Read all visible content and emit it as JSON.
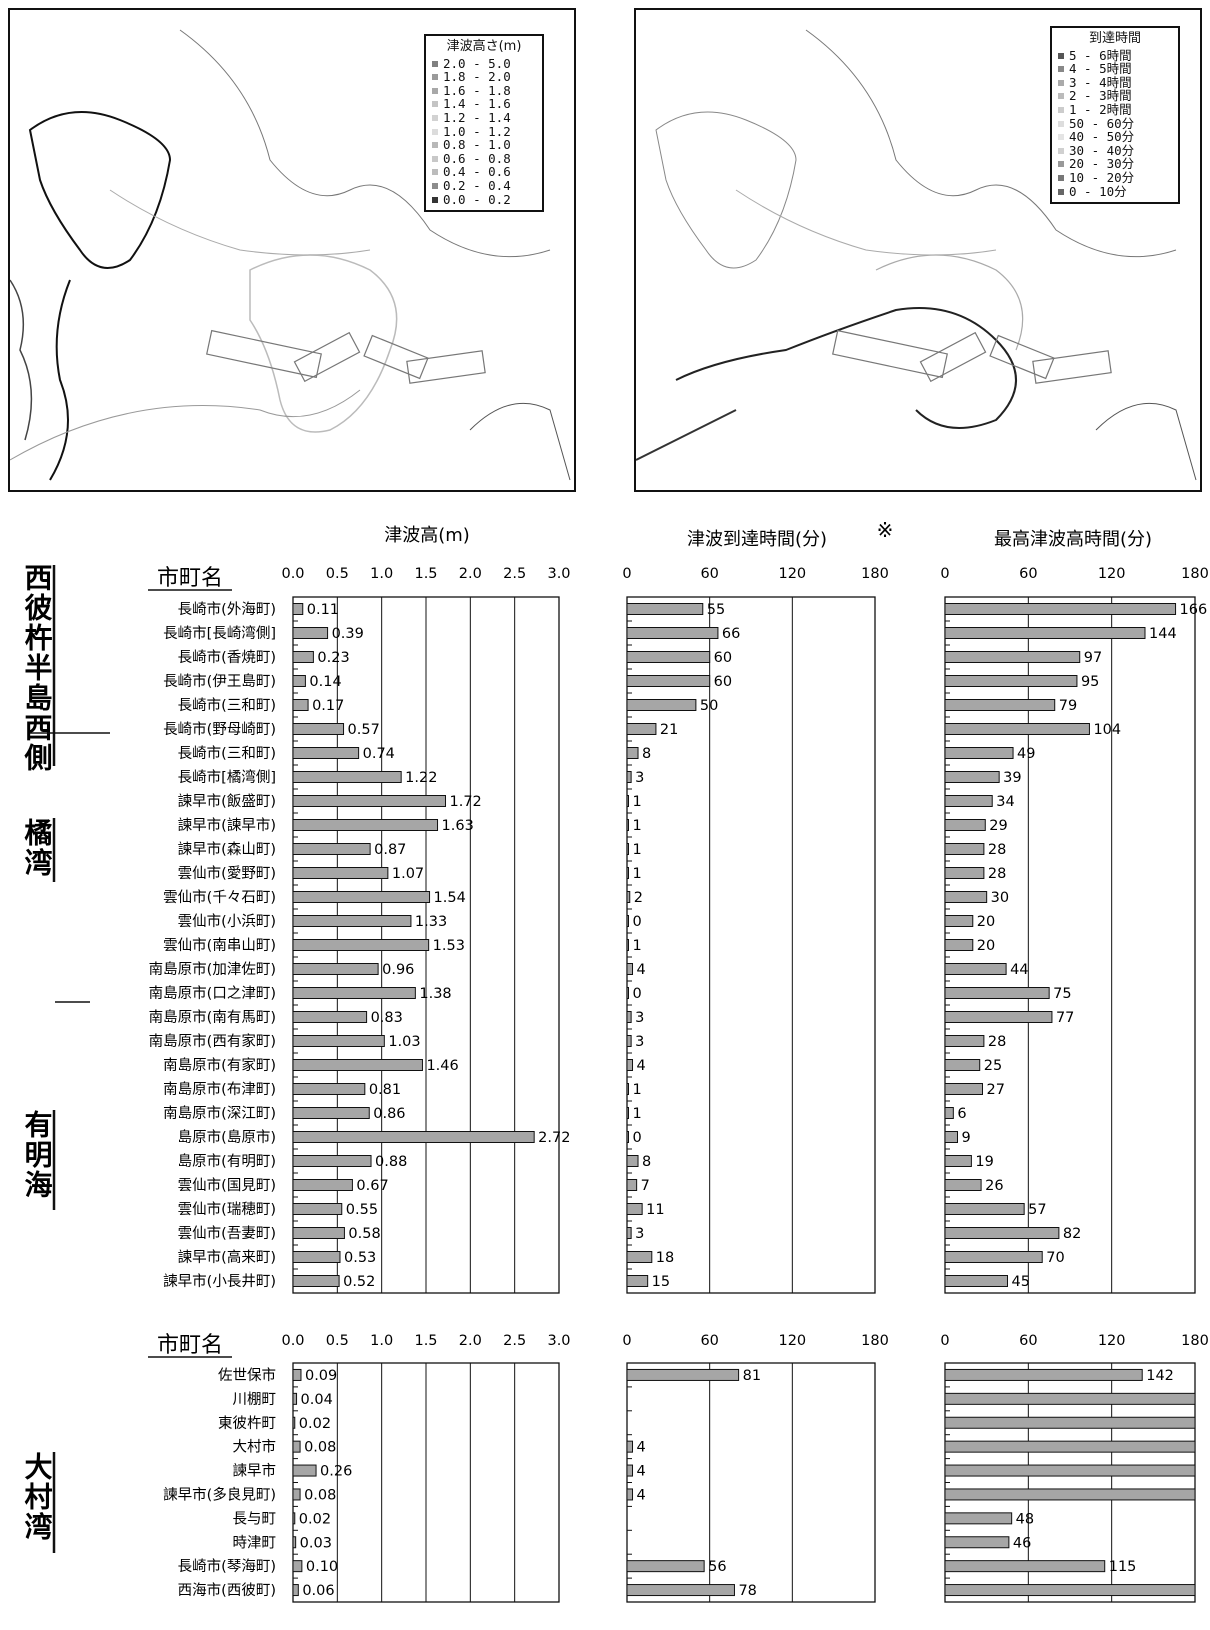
{
  "map_left": {
    "legend_title": "津波高さ(m)",
    "legend_items": [
      "2.0 - 5.0",
      "1.8 - 2.0",
      "1.6 - 1.8",
      "1.4 - 1.6",
      "1.2 - 1.4",
      "1.0 - 1.2",
      "0.8 - 1.0",
      "0.6 - 0.8",
      "0.4 - 0.6",
      "0.2 - 0.4",
      "0.0 - 0.2"
    ],
    "legend_colors": [
      "#808080",
      "#9a9a9a",
      "#a8a8a8",
      "#c4c4c4",
      "#d2d2d2",
      "#dcdcdc",
      "#b8b8b8",
      "#c8c8c8",
      "#bcbcbc",
      "#8c8c8c",
      "#333333"
    ]
  },
  "map_right": {
    "legend_title": "到達時間",
    "legend_items": [
      "5 - 6時間",
      "4 - 5時間",
      "3 - 4時間",
      "2 - 3時間",
      "1 - 2時間",
      "50 - 60分",
      "40 - 50分",
      "30 - 40分",
      "20 - 30分",
      "10 - 20分",
      "0 - 10分"
    ],
    "legend_colors": [
      "#555555",
      "#888888",
      "#aaaaaa",
      "#bbbbbb",
      "#cccccc",
      "#dddddd",
      "#e4e4e4",
      "#d0d0d0",
      "#999999",
      "#777777",
      "#666666"
    ]
  },
  "chart_data": [
    {
      "type": "bar",
      "orientation": "horizontal",
      "header": "市町名",
      "group_labels": [
        "西彼杵半島西側",
        "橘湾",
        "有明海"
      ],
      "title_height": "津波高(m)",
      "title_arrival": "津波到達時間(分)",
      "title_arrival_mark": "※",
      "title_max": "最高津波高時間(分)",
      "height_ticks": [
        "0.0",
        "0.5",
        "1.0",
        "1.5",
        "2.0",
        "2.5",
        "3.0"
      ],
      "height_lim": [
        0,
        3.0
      ],
      "time_ticks": [
        "0",
        "60",
        "120",
        "180"
      ],
      "time_lim": [
        0,
        180
      ],
      "categories": [
        "長崎市(外海町)",
        "長崎市[長崎湾側]",
        "長崎市(香焼町)",
        "長崎市(伊王島町)",
        "長崎市(三和町)",
        "長崎市(野母崎町)",
        "長崎市(三和町)",
        "長崎市[橘湾側]",
        "諫早市(飯盛町)",
        "諫早市(諫早市)",
        "諫早市(森山町)",
        "雲仙市(愛野町)",
        "雲仙市(千々石町)",
        "雲仙市(小浜町)",
        "雲仙市(南串山町)",
        "南島原市(加津佐町)",
        "南島原市(口之津町)",
        "南島原市(南有馬町)",
        "南島原市(西有家町)",
        "南島原市(有家町)",
        "南島原市(布津町)",
        "南島原市(深江町)",
        "島原市(島原市)",
        "島原市(有明町)",
        "雲仙市(国見町)",
        "雲仙市(瑞穂町)",
        "雲仙市(吾妻町)",
        "諫早市(高来町)",
        "諫早市(小長井町)"
      ],
      "series": [
        {
          "name": "津波高(m)",
          "values": [
            0.11,
            0.39,
            0.23,
            0.14,
            0.17,
            0.57,
            0.74,
            1.22,
            1.72,
            1.63,
            0.87,
            1.07,
            1.54,
            1.33,
            1.53,
            0.96,
            1.38,
            0.83,
            1.03,
            1.46,
            0.81,
            0.86,
            2.72,
            0.88,
            0.67,
            0.55,
            0.58,
            0.53,
            0.52
          ]
        },
        {
          "name": "津波到達時間(分)",
          "values": [
            55,
            66,
            60,
            60,
            50,
            21,
            8,
            3,
            1,
            1,
            1,
            1,
            2,
            0,
            1,
            4,
            0,
            3,
            3,
            4,
            1,
            1,
            0,
            8,
            7,
            11,
            3,
            18,
            15
          ]
        },
        {
          "name": "最高津波高時間(分)",
          "values": [
            166,
            144,
            97,
            95,
            79,
            104,
            49,
            39,
            34,
            29,
            28,
            28,
            30,
            20,
            20,
            44,
            75,
            77,
            28,
            25,
            27,
            6,
            9,
            19,
            26,
            57,
            82,
            70,
            45
          ]
        }
      ]
    },
    {
      "type": "bar",
      "orientation": "horizontal",
      "header": "市町名",
      "group_labels": [
        "大村湾"
      ],
      "height_ticks": [
        "0.0",
        "0.5",
        "1.0",
        "1.5",
        "2.0",
        "2.5",
        "3.0"
      ],
      "height_lim": [
        0,
        3.0
      ],
      "time_ticks": [
        "0",
        "60",
        "120",
        "180"
      ],
      "time_lim": [
        0,
        180
      ],
      "categories": [
        "佐世保市",
        "川棚町",
        "東彼杵町",
        "大村市",
        "諫早市",
        "諫早市(多良見町)",
        "長与町",
        "時津町",
        "長崎市(琴海町)",
        "西海市(西彼町)"
      ],
      "series": [
        {
          "name": "津波高(m)",
          "values": [
            0.09,
            0.04,
            0.02,
            0.08,
            0.26,
            0.08,
            0.02,
            0.03,
            0.1,
            0.06
          ]
        },
        {
          "name": "津波到達時間(分)",
          "values": [
            81,
            null,
            null,
            4,
            4,
            4,
            null,
            null,
            56,
            78
          ],
          "labels": [
            "81",
            "",
            "",
            "4",
            "4",
            "4",
            "",
            "",
            "56",
            "78"
          ]
        },
        {
          "name": "最高津波高時間(分)",
          "values": [
            142,
            180,
            180,
            180,
            180,
            180,
            48,
            46,
            115,
            180
          ],
          "labels": [
            "142",
            "",
            "",
            "",
            "",
            "",
            "48",
            "46",
            "115",
            ""
          ]
        }
      ]
    }
  ],
  "height_labels_1": [
    "0.11",
    "0.39",
    "0.23",
    "0.14",
    "0.17",
    "0.57",
    "0.74",
    "1.22",
    "1.72",
    "1.63",
    "0.87",
    "1.07",
    "1.54",
    "1.33",
    "1.53",
    "0.96",
    "1.38",
    "0.83",
    "1.03",
    "1.46",
    "0.81",
    "0.86",
    "2.72",
    "0.88",
    "0.67",
    "0.55",
    "0.58",
    "0.53",
    "0.52"
  ],
  "height_labels_2": [
    "0.09",
    "0.04",
    "0.02",
    "0.08",
    "0.26",
    "0.08",
    "0.02",
    "0.03",
    "0.10",
    "0.06"
  ],
  "colors": {
    "bar": "#a6a6a6",
    "line": "#111111"
  }
}
